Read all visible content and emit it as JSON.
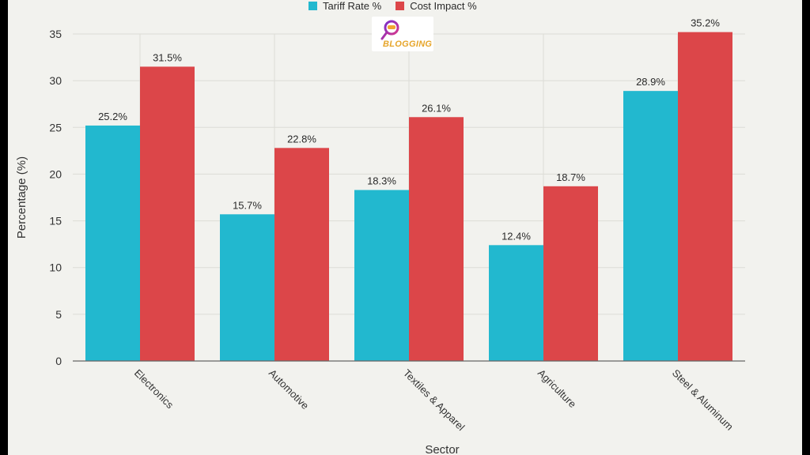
{
  "logo": {
    "text": "BLOGGING",
    "icon": "magnifier-logo-icon"
  },
  "chart_data": {
    "type": "bar",
    "title": "",
    "xlabel": "Sector",
    "ylabel": "Percentage (%)",
    "categories": [
      "Electronics",
      "Automotive",
      "Textiles & Apparel",
      "Agriculture",
      "Steel & Aluminum"
    ],
    "series": [
      {
        "name": "Tariff Rate %",
        "color": "#22b8cf",
        "values": [
          25.2,
          15.7,
          18.3,
          12.4,
          28.9
        ]
      },
      {
        "name": "Cost Impact %",
        "color": "#dc4649",
        "values": [
          31.5,
          22.8,
          26.1,
          18.7,
          35.2
        ]
      }
    ],
    "data_labels": [
      [
        "25.2%",
        "15.7%",
        "18.3%",
        "12.4%",
        "28.9%"
      ],
      [
        "31.5%",
        "22.8%",
        "26.1%",
        "18.7%",
        "35.2%"
      ]
    ],
    "yticks": [
      0,
      5,
      10,
      15,
      20,
      25,
      30,
      35
    ],
    "ylim": [
      0,
      35
    ],
    "grid": true,
    "legend_position": "top-center"
  }
}
